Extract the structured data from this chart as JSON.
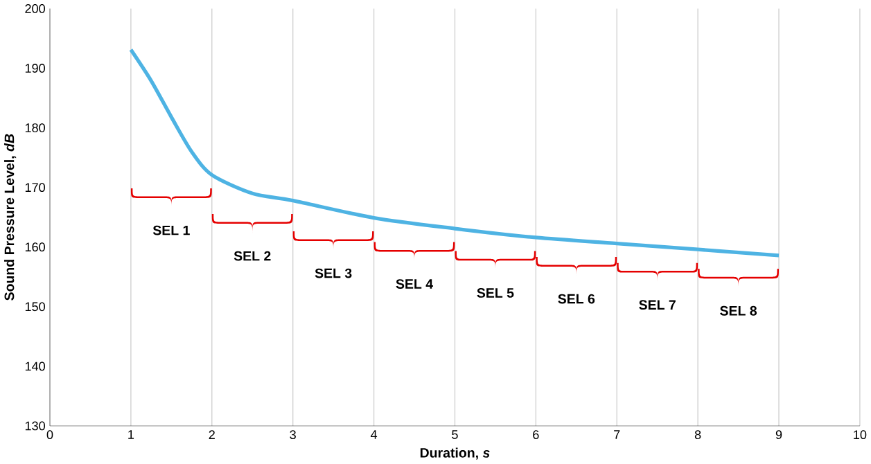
{
  "chart_data": {
    "type": "line",
    "xlabel": "Duration, *s*",
    "ylabel": "Sound Pressure Level, *dB*",
    "x": [
      1,
      1.25,
      1.5,
      1.75,
      2,
      2.5,
      3,
      4,
      5,
      6,
      7,
      8,
      9
    ],
    "series": [
      {
        "color": "#4eb3e3",
        "values": [
          193.1,
          187.9,
          181.8,
          176,
          172.1,
          169,
          167.8,
          164.9,
          163.1,
          161.6,
          160.6,
          159.6,
          158.6
        ]
      }
    ],
    "xlim": [
      0,
      10
    ],
    "xticks": [
      0,
      1,
      2,
      3,
      4,
      5,
      6,
      7,
      8,
      9,
      10
    ],
    "ylim": [
      130,
      200
    ],
    "yticks": [
      130,
      140,
      150,
      160,
      170,
      180,
      190,
      200
    ],
    "grid": "x",
    "marker": "none",
    "line_style": "solid",
    "annotations": [
      "SEL 1",
      "SEL 2",
      "SEL 3",
      "SEL 4",
      "SEL 5",
      "SEL 6",
      "SEL 7",
      "SEL 8"
    ]
  }
}
